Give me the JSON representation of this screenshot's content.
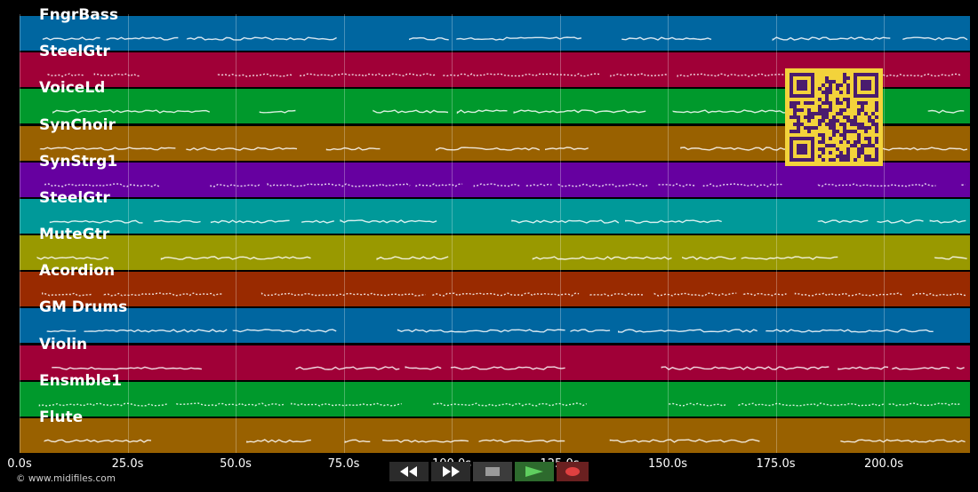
{
  "app": {
    "copyright": "© www.midifiles.com"
  },
  "tracks": [
    {
      "name": "FngrBass",
      "color": "#0066a0"
    },
    {
      "name": "SteelGtr",
      "color": "#a00037"
    },
    {
      "name": "VoiceLd",
      "color": "#00992c"
    },
    {
      "name": "SynChoir",
      "color": "#996100"
    },
    {
      "name": "SynStrg1",
      "color": "#6600a0"
    },
    {
      "name": "SteelGtr",
      "color": "#009999"
    },
    {
      "name": "MuteGtr",
      "color": "#999900"
    },
    {
      "name": "Acordion",
      "color": "#992a00"
    },
    {
      "name": "GM Drums",
      "color": "#0066a0"
    },
    {
      "name": "Violin",
      "color": "#a00037"
    },
    {
      "name": "Ensmble1",
      "color": "#00992c"
    },
    {
      "name": "Flute",
      "color": "#996100"
    }
  ],
  "timeline": {
    "ticks": [
      "0.0s",
      "25.0s",
      "50.0s",
      "75.0s",
      "100.0s",
      "125.0s",
      "150.0s",
      "175.0s",
      "200.0s"
    ]
  },
  "transport": {
    "rewind_icon": "rewind-icon",
    "fast_forward_icon": "fast-forward-icon",
    "stop_icon": "stop-icon",
    "play_icon": "play-icon",
    "record_icon": "record-icon",
    "play_color": "#5fcf5f",
    "record_color": "#e04040"
  },
  "qr_code": {
    "fg_color": "#4a1c6e",
    "bg_color": "#f3d33b"
  }
}
